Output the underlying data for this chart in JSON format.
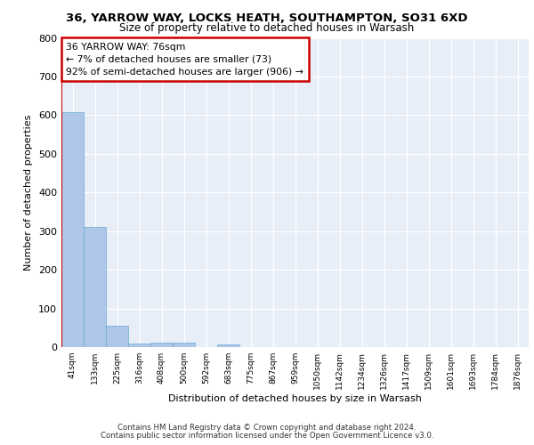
{
  "title1": "36, YARROW WAY, LOCKS HEATH, SOUTHAMPTON, SO31 6XD",
  "title2": "Size of property relative to detached houses in Warsash",
  "xlabel": "Distribution of detached houses by size in Warsash",
  "ylabel": "Number of detached properties",
  "bar_labels": [
    "41sqm",
    "133sqm",
    "225sqm",
    "316sqm",
    "408sqm",
    "500sqm",
    "592sqm",
    "683sqm",
    "775sqm",
    "867sqm",
    "959sqm",
    "1050sqm",
    "1142sqm",
    "1234sqm",
    "1326sqm",
    "1417sqm",
    "1509sqm",
    "1601sqm",
    "1693sqm",
    "1784sqm",
    "1876sqm"
  ],
  "bar_values": [
    608,
    310,
    55,
    10,
    11,
    12,
    0,
    8,
    0,
    0,
    0,
    0,
    0,
    0,
    0,
    0,
    0,
    0,
    0,
    0,
    0
  ],
  "bar_color": "#aec6e8",
  "bar_edge_color": "#6aaad4",
  "annotation_box_text": "36 YARROW WAY: 76sqm\n← 7% of detached houses are smaller (73)\n92% of semi-detached houses are larger (906) →",
  "annotation_box_color": "#ffffff",
  "annotation_box_edge_color": "#cc0000",
  "vline_color": "#cc0000",
  "ylim": [
    0,
    800
  ],
  "yticks": [
    0,
    100,
    200,
    300,
    400,
    500,
    600,
    700,
    800
  ],
  "background_color": "#e8eef8",
  "grid_color": "#ffffff",
  "footer_line1": "Contains HM Land Registry data © Crown copyright and database right 2024.",
  "footer_line2": "Contains public sector information licensed under the Open Government Licence v3.0."
}
